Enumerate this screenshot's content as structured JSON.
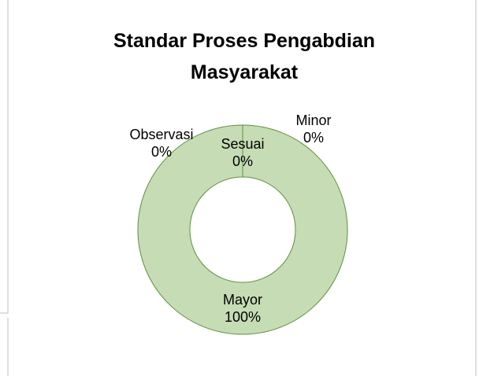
{
  "chart_data": {
    "type": "donut",
    "title": "Standar Proses Pengabdian Masyarakat",
    "categories": [
      "Sesuai",
      "Minor",
      "Mayor",
      "Observasi"
    ],
    "values": [
      0,
      0,
      100,
      0
    ],
    "value_labels": [
      "0%",
      "0%",
      "100%",
      "0%"
    ],
    "color": "#c5dcb5",
    "edge_color": "#5f8f3e"
  }
}
